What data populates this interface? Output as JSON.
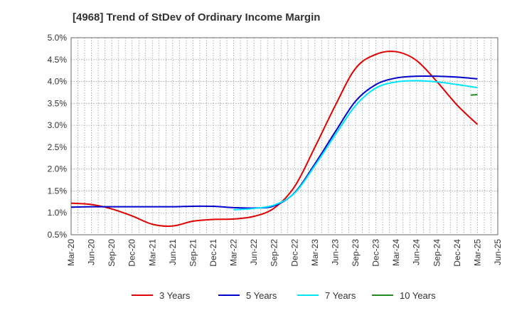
{
  "chart_data": {
    "type": "line",
    "title": "[4968]  Trend of StDev of Ordinary Income Margin",
    "x_ticks": [
      "Mar-20",
      "Jun-20",
      "Sep-20",
      "Dec-20",
      "Mar-21",
      "Jun-21",
      "Sep-21",
      "Dec-21",
      "Mar-22",
      "Jun-22",
      "Sep-22",
      "Dec-22",
      "Mar-23",
      "Jun-23",
      "Sep-23",
      "Dec-23",
      "Mar-24",
      "Jun-24",
      "Sep-24",
      "Dec-24",
      "Mar-25",
      "Jun-25"
    ],
    "y_ticks": [
      "0.5%",
      "1.0%",
      "1.5%",
      "2.0%",
      "2.5%",
      "3.0%",
      "3.5%",
      "4.0%",
      "4.5%",
      "5.0%"
    ],
    "ylim": [
      0.5,
      5.0
    ],
    "grid": true,
    "legend_position": "bottom",
    "series": [
      {
        "name": "3 Years",
        "color": "#e00000",
        "points": [
          [
            "Mar-20",
            1.22
          ],
          [
            "Jun-20",
            1.19
          ],
          [
            "Sep-20",
            1.09
          ],
          [
            "Dec-20",
            0.93
          ],
          [
            "Mar-21",
            0.74
          ],
          [
            "Jun-21",
            0.7
          ],
          [
            "Sep-21",
            0.81
          ],
          [
            "Dec-21",
            0.85
          ],
          [
            "Mar-22",
            0.86
          ],
          [
            "Jun-22",
            0.92
          ],
          [
            "Sep-22",
            1.11
          ],
          [
            "Dec-22",
            1.6
          ],
          [
            "Mar-23",
            2.5
          ],
          [
            "Jun-23",
            3.45
          ],
          [
            "Sep-23",
            4.3
          ],
          [
            "Dec-23",
            4.62
          ],
          [
            "Mar-24",
            4.68
          ],
          [
            "Jun-24",
            4.48
          ],
          [
            "Sep-24",
            4.0
          ],
          [
            "Dec-24",
            3.46
          ],
          [
            "Mar-25",
            3.02
          ]
        ]
      },
      {
        "name": "5 Years",
        "color": "#0000cc",
        "points": [
          [
            "Mar-20",
            1.13
          ],
          [
            "Jun-20",
            1.14
          ],
          [
            "Sep-20",
            1.14
          ],
          [
            "Dec-20",
            1.14
          ],
          [
            "Mar-21",
            1.14
          ],
          [
            "Jun-21",
            1.14
          ],
          [
            "Sep-21",
            1.15
          ],
          [
            "Dec-21",
            1.15
          ],
          [
            "Mar-22",
            1.12
          ],
          [
            "Jun-22",
            1.11
          ],
          [
            "Sep-22",
            1.16
          ],
          [
            "Dec-22",
            1.46
          ],
          [
            "Mar-23",
            2.12
          ],
          [
            "Jun-23",
            2.85
          ],
          [
            "Sep-23",
            3.55
          ],
          [
            "Dec-23",
            3.93
          ],
          [
            "Mar-24",
            4.08
          ],
          [
            "Jun-24",
            4.12
          ],
          [
            "Sep-24",
            4.12
          ],
          [
            "Dec-24",
            4.1
          ],
          [
            "Mar-25",
            4.06
          ]
        ]
      },
      {
        "name": "7 Years",
        "color": "#00e5ff",
        "points": [
          [
            "Mar-22",
            1.07
          ],
          [
            "Jun-22",
            1.1
          ],
          [
            "Sep-22",
            1.18
          ],
          [
            "Dec-22",
            1.45
          ],
          [
            "Mar-23",
            2.08
          ],
          [
            "Jun-23",
            2.78
          ],
          [
            "Sep-23",
            3.45
          ],
          [
            "Dec-23",
            3.85
          ],
          [
            "Mar-24",
            3.99
          ],
          [
            "Jun-24",
            4.02
          ],
          [
            "Sep-24",
            3.99
          ],
          [
            "Dec-24",
            3.93
          ],
          [
            "Mar-25",
            3.86
          ]
        ]
      },
      {
        "name": "10 Years",
        "color": "#228b22",
        "points": [
          [
            "Feb-25",
            3.69
          ],
          [
            "Mar-25",
            3.7
          ]
        ]
      }
    ]
  }
}
